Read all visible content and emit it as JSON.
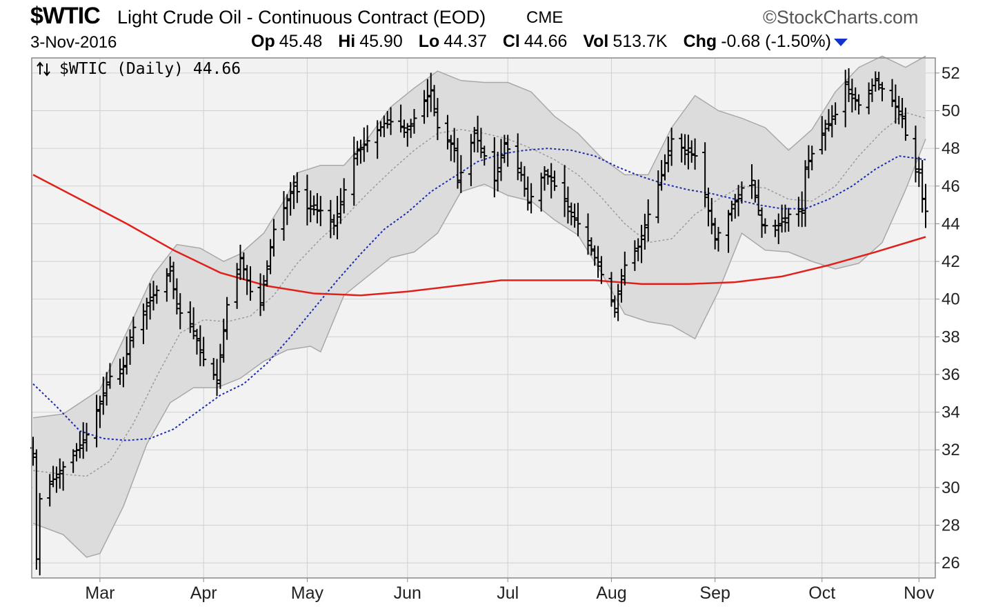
{
  "header": {
    "symbol": "$WTIC",
    "name": "Light Crude Oil - Continuous Contract (EOD)",
    "exchange": "CME",
    "brand": "StockCharts.com",
    "date": "3-Nov-2016",
    "quote": {
      "open_label": "Op",
      "open": "45.48",
      "high_label": "Hi",
      "high": "45.90",
      "low_label": "Lo",
      "low": "44.37",
      "close_label": "Cl",
      "close": "44.66",
      "volume_label": "Vol",
      "volume": "513.7K",
      "change_label": "Chg",
      "change": "-0.68 (-1.50%)"
    },
    "down_color": "#1133cc"
  },
  "legend": {
    "icon": "up-down-arrows-icon",
    "text": "$WTIC (Daily) 44.66"
  },
  "chart_data": {
    "type": "line",
    "subtype": "ohlc-bars",
    "title": "$WTIC Light Crude Oil - Continuous Contract (EOD)",
    "x_range": [
      "2016-02-10",
      "2016-11-03"
    ],
    "x_ticks": [
      {
        "label": "Mar",
        "date": "2016-03-01"
      },
      {
        "label": "Apr",
        "date": "2016-04-01"
      },
      {
        "label": "May",
        "date": "2016-05-02"
      },
      {
        "label": "Jun",
        "date": "2016-06-01"
      },
      {
        "label": "Jul",
        "date": "2016-07-01"
      },
      {
        "label": "Aug",
        "date": "2016-08-01"
      },
      {
        "label": "Sep",
        "date": "2016-09-01"
      },
      {
        "label": "Oct",
        "date": "2016-10-03"
      },
      {
        "label": "Nov",
        "date": "2016-11-01"
      }
    ],
    "y_ticks": [
      26,
      28,
      30,
      32,
      34,
      36,
      38,
      40,
      42,
      44,
      46,
      48,
      50,
      52
    ],
    "ylim": [
      25.2,
      52.8
    ],
    "grid": true,
    "price_close_anchors": [
      [
        "2016-02-10",
        31.8
      ],
      [
        "2016-02-11",
        26.2
      ],
      [
        "2016-02-12",
        29.4
      ],
      [
        "2016-02-17",
        30.7
      ],
      [
        "2016-02-22",
        31.7
      ],
      [
        "2016-02-26",
        32.8
      ],
      [
        "2016-03-04",
        35.9
      ],
      [
        "2016-03-08",
        36.4
      ],
      [
        "2016-03-11",
        38.5
      ],
      [
        "2016-03-17",
        40.2
      ],
      [
        "2016-03-22",
        41.5
      ],
      [
        "2016-03-24",
        39.5
      ],
      [
        "2016-03-29",
        38.3
      ],
      [
        "2016-04-01",
        36.8
      ],
      [
        "2016-04-05",
        35.7
      ],
      [
        "2016-04-08",
        39.7
      ],
      [
        "2016-04-12",
        42.2
      ],
      [
        "2016-04-15",
        40.4
      ],
      [
        "2016-04-18",
        39.8
      ],
      [
        "2016-04-22",
        43.7
      ],
      [
        "2016-04-28",
        46.0
      ],
      [
        "2016-05-02",
        44.8
      ],
      [
        "2016-05-06",
        44.7
      ],
      [
        "2016-05-10",
        43.9
      ],
      [
        "2016-05-16",
        47.7
      ],
      [
        "2016-05-20",
        48.4
      ],
      [
        "2016-05-26",
        49.5
      ],
      [
        "2016-06-01",
        49.0
      ],
      [
        "2016-06-08",
        51.1
      ],
      [
        "2016-06-10",
        49.1
      ],
      [
        "2016-06-15",
        48.0
      ],
      [
        "2016-06-16",
        46.2
      ],
      [
        "2016-06-21",
        48.8
      ],
      [
        "2016-06-24",
        47.6
      ],
      [
        "2016-06-27",
        46.3
      ],
      [
        "2016-06-30",
        48.3
      ],
      [
        "2016-07-05",
        46.6
      ],
      [
        "2016-07-07",
        45.1
      ],
      [
        "2016-07-12",
        46.8
      ],
      [
        "2016-07-18",
        45.2
      ],
      [
        "2016-07-25",
        43.1
      ],
      [
        "2016-08-02",
        39.5
      ],
      [
        "2016-08-05",
        41.8
      ],
      [
        "2016-08-09",
        42.8
      ],
      [
        "2016-08-12",
        44.5
      ],
      [
        "2016-08-16",
        46.6
      ],
      [
        "2016-08-19",
        48.5
      ],
      [
        "2016-08-23",
        47.9
      ],
      [
        "2016-08-26",
        47.6
      ],
      [
        "2016-09-01",
        43.2
      ],
      [
        "2016-09-06",
        44.8
      ],
      [
        "2016-09-09",
        45.9
      ],
      [
        "2016-09-12",
        46.3
      ],
      [
        "2016-09-15",
        43.9
      ],
      [
        "2016-09-20",
        43.9
      ],
      [
        "2016-09-23",
        44.5
      ],
      [
        "2016-09-27",
        44.7
      ],
      [
        "2016-09-28",
        47.0
      ],
      [
        "2016-10-03",
        48.8
      ],
      [
        "2016-10-07",
        49.8
      ],
      [
        "2016-10-10",
        51.4
      ],
      [
        "2016-10-14",
        50.3
      ],
      [
        "2016-10-19",
        51.6
      ],
      [
        "2016-10-24",
        50.5
      ],
      [
        "2016-10-27",
        49.7
      ],
      [
        "2016-10-28",
        48.7
      ],
      [
        "2016-10-31",
        46.9
      ],
      [
        "2016-11-01",
        46.7
      ],
      [
        "2016-11-02",
        45.3
      ],
      [
        "2016-11-03",
        44.66
      ]
    ],
    "bollinger_upper": [
      [
        "2016-02-10",
        33.7
      ],
      [
        "2016-02-19",
        33.9
      ],
      [
        "2016-03-01",
        35.2
      ],
      [
        "2016-03-11",
        39.0
      ],
      [
        "2016-03-17",
        41.3
      ],
      [
        "2016-03-24",
        42.9
      ],
      [
        "2016-03-31",
        42.7
      ],
      [
        "2016-04-07",
        42.0
      ],
      [
        "2016-04-12",
        42.4
      ],
      [
        "2016-04-19",
        43.5
      ],
      [
        "2016-04-26",
        45.5
      ],
      [
        "2016-04-29",
        46.7
      ],
      [
        "2016-05-06",
        47.1
      ],
      [
        "2016-05-13",
        47.1
      ],
      [
        "2016-05-20",
        48.5
      ],
      [
        "2016-05-27",
        50.2
      ],
      [
        "2016-06-03",
        51.2
      ],
      [
        "2016-06-10",
        52.1
      ],
      [
        "2016-06-17",
        51.6
      ],
      [
        "2016-06-24",
        51.5
      ],
      [
        "2016-07-01",
        51.5
      ],
      [
        "2016-07-08",
        51.0
      ],
      [
        "2016-07-15",
        49.7
      ],
      [
        "2016-07-22",
        48.8
      ],
      [
        "2016-07-29",
        47.5
      ],
      [
        "2016-08-05",
        46.6
      ],
      [
        "2016-08-12",
        46.6
      ],
      [
        "2016-08-19",
        49.1
      ],
      [
        "2016-08-26",
        50.8
      ],
      [
        "2016-09-02",
        50.0
      ],
      [
        "2016-09-09",
        49.6
      ],
      [
        "2016-09-16",
        49.1
      ],
      [
        "2016-09-23",
        47.9
      ],
      [
        "2016-09-30",
        49.0
      ],
      [
        "2016-10-07",
        51.0
      ],
      [
        "2016-10-14",
        52.3
      ],
      [
        "2016-10-21",
        52.9
      ],
      [
        "2016-10-28",
        52.3
      ],
      [
        "2016-11-03",
        52.9
      ]
    ],
    "bollinger_lower": [
      [
        "2016-02-10",
        28.1
      ],
      [
        "2016-02-19",
        27.5
      ],
      [
        "2016-02-26",
        26.3
      ],
      [
        "2016-03-01",
        26.5
      ],
      [
        "2016-03-08",
        29.0
      ],
      [
        "2016-03-15",
        32.3
      ],
      [
        "2016-03-22",
        34.5
      ],
      [
        "2016-03-29",
        35.3
      ],
      [
        "2016-04-05",
        35.3
      ],
      [
        "2016-04-12",
        35.8
      ],
      [
        "2016-04-19",
        36.7
      ],
      [
        "2016-04-26",
        37.3
      ],
      [
        "2016-05-03",
        37.5
      ],
      [
        "2016-05-06",
        37.2
      ],
      [
        "2016-05-13",
        40.2
      ],
      [
        "2016-05-20",
        41.2
      ],
      [
        "2016-05-27",
        42.2
      ],
      [
        "2016-06-03",
        42.5
      ],
      [
        "2016-06-10",
        43.5
      ],
      [
        "2016-06-17",
        45.7
      ],
      [
        "2016-06-24",
        46.1
      ],
      [
        "2016-07-01",
        45.5
      ],
      [
        "2016-07-08",
        45.2
      ],
      [
        "2016-07-15",
        44.2
      ],
      [
        "2016-07-22",
        43.4
      ],
      [
        "2016-07-29",
        41.4
      ],
      [
        "2016-08-05",
        39.2
      ],
      [
        "2016-08-12",
        38.8
      ],
      [
        "2016-08-19",
        38.6
      ],
      [
        "2016-08-26",
        37.9
      ],
      [
        "2016-09-02",
        40.4
      ],
      [
        "2016-09-09",
        43.5
      ],
      [
        "2016-09-16",
        42.6
      ],
      [
        "2016-09-23",
        42.5
      ],
      [
        "2016-09-30",
        42.0
      ],
      [
        "2016-10-07",
        41.6
      ],
      [
        "2016-10-14",
        41.9
      ],
      [
        "2016-10-21",
        43.0
      ],
      [
        "2016-10-28",
        45.8
      ],
      [
        "2016-11-03",
        48.5
      ]
    ],
    "sma_20": [
      [
        "2016-02-10",
        30.9
      ],
      [
        "2016-02-19",
        30.7
      ],
      [
        "2016-02-26",
        30.6
      ],
      [
        "2016-03-04",
        31.4
      ],
      [
        "2016-03-11",
        33.4
      ],
      [
        "2016-03-18",
        35.9
      ],
      [
        "2016-03-25",
        38.2
      ],
      [
        "2016-04-01",
        38.9
      ],
      [
        "2016-04-08",
        38.8
      ],
      [
        "2016-04-15",
        39.1
      ],
      [
        "2016-04-22",
        40.2
      ],
      [
        "2016-04-29",
        41.9
      ],
      [
        "2016-05-06",
        43.2
      ],
      [
        "2016-05-13",
        44.3
      ],
      [
        "2016-05-20",
        45.6
      ],
      [
        "2016-05-27",
        46.8
      ],
      [
        "2016-06-03",
        47.9
      ],
      [
        "2016-06-10",
        48.8
      ],
      [
        "2016-06-17",
        49.0
      ],
      [
        "2016-06-24",
        48.8
      ],
      [
        "2016-07-01",
        48.5
      ],
      [
        "2016-07-08",
        48.0
      ],
      [
        "2016-07-15",
        47.4
      ],
      [
        "2016-07-22",
        46.6
      ],
      [
        "2016-07-29",
        45.4
      ],
      [
        "2016-08-05",
        44.0
      ],
      [
        "2016-08-12",
        43.0
      ],
      [
        "2016-08-19",
        43.2
      ],
      [
        "2016-08-26",
        44.5
      ],
      [
        "2016-09-02",
        45.3
      ],
      [
        "2016-09-09",
        46.0
      ],
      [
        "2016-09-16",
        45.9
      ],
      [
        "2016-09-23",
        45.3
      ],
      [
        "2016-09-30",
        45.2
      ],
      [
        "2016-10-07",
        46.0
      ],
      [
        "2016-10-14",
        47.6
      ],
      [
        "2016-10-21",
        48.9
      ],
      [
        "2016-10-28",
        49.9
      ],
      [
        "2016-11-03",
        49.6
      ]
    ],
    "sma_50": [
      [
        "2016-02-10",
        35.5
      ],
      [
        "2016-02-17",
        34.3
      ],
      [
        "2016-02-24",
        33.0
      ],
      [
        "2016-03-02",
        32.6
      ],
      [
        "2016-03-09",
        32.5
      ],
      [
        "2016-03-16",
        32.6
      ],
      [
        "2016-03-23",
        33.1
      ],
      [
        "2016-03-30",
        34.0
      ],
      [
        "2016-04-06",
        34.9
      ],
      [
        "2016-04-13",
        35.5
      ],
      [
        "2016-04-20",
        36.6
      ],
      [
        "2016-04-27",
        38.0
      ],
      [
        "2016-05-04",
        39.5
      ],
      [
        "2016-05-11",
        41.0
      ],
      [
        "2016-05-18",
        42.4
      ],
      [
        "2016-05-25",
        43.7
      ],
      [
        "2016-06-01",
        44.6
      ],
      [
        "2016-06-08",
        45.7
      ],
      [
        "2016-06-15",
        46.5
      ],
      [
        "2016-06-22",
        47.3
      ],
      [
        "2016-06-29",
        47.7
      ],
      [
        "2016-07-06",
        47.9
      ],
      [
        "2016-07-13",
        48.0
      ],
      [
        "2016-07-20",
        47.9
      ],
      [
        "2016-07-27",
        47.6
      ],
      [
        "2016-08-03",
        47.0
      ],
      [
        "2016-08-10",
        46.5
      ],
      [
        "2016-08-17",
        46.1
      ],
      [
        "2016-08-24",
        45.8
      ],
      [
        "2016-08-31",
        45.6
      ],
      [
        "2016-09-07",
        45.3
      ],
      [
        "2016-09-14",
        45.0
      ],
      [
        "2016-09-21",
        44.8
      ],
      [
        "2016-09-28",
        44.8
      ],
      [
        "2016-10-05",
        45.3
      ],
      [
        "2016-10-12",
        46.0
      ],
      [
        "2016-10-19",
        46.9
      ],
      [
        "2016-10-26",
        47.6
      ],
      [
        "2016-11-03",
        47.4
      ]
    ],
    "sma_200": [
      [
        "2016-02-10",
        46.6
      ],
      [
        "2016-02-24",
        45.3
      ],
      [
        "2016-03-09",
        44.0
      ],
      [
        "2016-03-23",
        42.6
      ],
      [
        "2016-04-06",
        41.4
      ],
      [
        "2016-04-20",
        40.7
      ],
      [
        "2016-05-04",
        40.3
      ],
      [
        "2016-05-18",
        40.2
      ],
      [
        "2016-06-01",
        40.4
      ],
      [
        "2016-06-15",
        40.7
      ],
      [
        "2016-06-29",
        41.0
      ],
      [
        "2016-07-13",
        41.0
      ],
      [
        "2016-07-27",
        41.0
      ],
      [
        "2016-08-10",
        40.8
      ],
      [
        "2016-08-24",
        40.8
      ],
      [
        "2016-09-07",
        40.9
      ],
      [
        "2016-09-21",
        41.2
      ],
      [
        "2016-10-05",
        41.8
      ],
      [
        "2016-10-19",
        42.5
      ],
      [
        "2016-11-03",
        43.3
      ]
    ],
    "colors": {
      "price_bars": "#000000",
      "bollinger_fill": "#dcdcdc",
      "bollinger_edge": "#a8a8a8",
      "sma_20": "#9a9a9a",
      "sma_50": "#1a2bb0",
      "sma_200": "#e0201b",
      "background": "#f2f2f2",
      "grid": "#d0d0d0"
    }
  }
}
